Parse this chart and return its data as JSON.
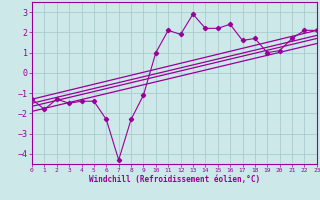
{
  "xlabel": "Windchill (Refroidissement éolien,°C)",
  "bg_color": "#cce8e8",
  "grid_color": "#aacccc",
  "line_color": "#990099",
  "x_data": [
    0,
    1,
    2,
    3,
    4,
    5,
    6,
    7,
    8,
    9,
    10,
    11,
    12,
    13,
    14,
    15,
    16,
    17,
    18,
    19,
    20,
    21,
    22,
    23
  ],
  "y_data": [
    -1.3,
    -1.8,
    -1.3,
    -1.5,
    -1.4,
    -1.4,
    -2.3,
    -4.3,
    -2.3,
    -1.1,
    1.0,
    2.1,
    1.9,
    2.9,
    2.2,
    2.2,
    2.4,
    1.6,
    1.7,
    1.0,
    1.1,
    1.7,
    2.1,
    2.1
  ],
  "xlim": [
    0,
    23
  ],
  "ylim": [
    -4.5,
    3.5
  ],
  "yticks": [
    -4,
    -3,
    -2,
    -1,
    0,
    1,
    2,
    3
  ],
  "xticks": [
    0,
    1,
    2,
    3,
    4,
    5,
    6,
    7,
    8,
    9,
    10,
    11,
    12,
    13,
    14,
    15,
    16,
    17,
    18,
    19,
    20,
    21,
    22,
    23
  ],
  "reg_upper": [
    -1.3,
    2.1
  ],
  "reg_mid1": [
    -1.5,
    1.85
  ],
  "reg_mid2": [
    -1.65,
    1.7
  ],
  "reg_lower": [
    -1.9,
    1.45
  ]
}
